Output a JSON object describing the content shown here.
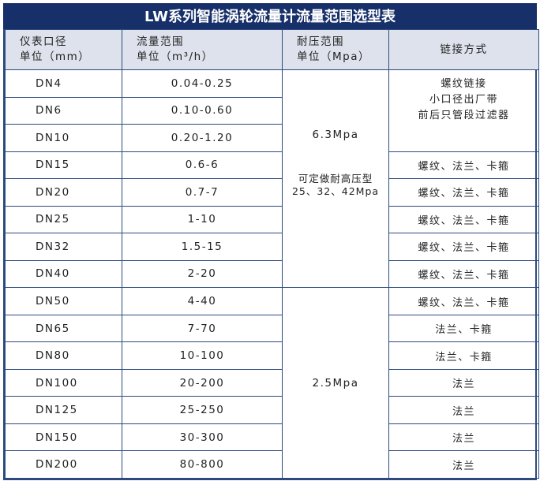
{
  "title": "LW系列智能涡轮流量计流量范围选型表",
  "headers": [
    {
      "line1": "仪表口径",
      "line2": "单位（mm）"
    },
    {
      "line1": "流量范围",
      "line2": "单位（m³/h）"
    },
    {
      "line1": "耐压范围",
      "line2": "单位（Mpa）"
    },
    {
      "line1": "链接方式"
    }
  ],
  "rows": [
    {
      "size": "DN4",
      "flow": "0.04-0.25"
    },
    {
      "size": "DN6",
      "flow": "0.10-0.60"
    },
    {
      "size": "DN10",
      "flow": "0.20-1.20"
    },
    {
      "size": "DN15",
      "flow": "0.6-6",
      "connection": "螺纹、法兰、卡箍"
    },
    {
      "size": "DN20",
      "flow": "0.7-7",
      "connection": "螺纹、法兰、卡箍"
    },
    {
      "size": "DN25",
      "flow": "1-10",
      "connection": "螺纹、法兰、卡箍"
    },
    {
      "size": "DN32",
      "flow": "1.5-15",
      "connection": "螺纹、法兰、卡箍"
    },
    {
      "size": "DN40",
      "flow": "2-20",
      "connection": "螺纹、法兰、卡箍"
    },
    {
      "size": "DN50",
      "flow": "4-40",
      "connection": "螺纹、法兰、卡箍"
    },
    {
      "size": "DN65",
      "flow": "7-70",
      "connection": "法兰、卡箍"
    },
    {
      "size": "DN80",
      "flow": "10-100",
      "connection": "法兰、卡箍"
    },
    {
      "size": "DN100",
      "flow": "20-200",
      "connection": "法兰"
    },
    {
      "size": "DN125",
      "flow": "25-250",
      "connection": "法兰"
    },
    {
      "size": "DN150",
      "flow": "30-300",
      "connection": "法兰"
    },
    {
      "size": "DN200",
      "flow": "80-800",
      "connection": "法兰"
    }
  ],
  "small_bore_connection": [
    "螺纹链接",
    "小口径出厂带",
    "前后只管段过滤器"
  ],
  "pressure_group_1": {
    "value": "6.3Mpa",
    "note1": "可定做耐高压型",
    "note2": "25、32、42Mpa"
  },
  "pressure_group_2": {
    "value": "2.5Mpa"
  },
  "colors": {
    "title_bg": "#17306a",
    "header_bg": "#dde2ec",
    "border": "#2d4a7e"
  }
}
